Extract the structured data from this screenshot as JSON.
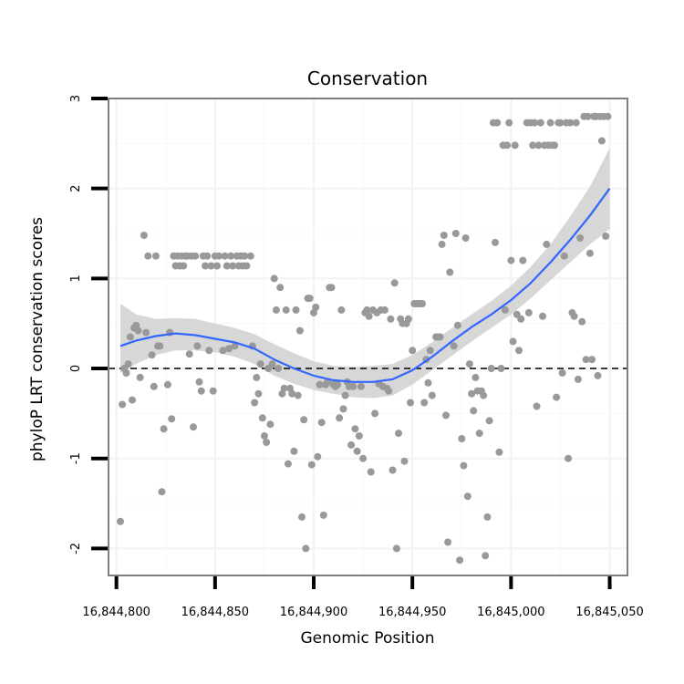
{
  "chart_data": {
    "type": "scatter",
    "title": "Conservation",
    "xlabel": "Genomic Position",
    "ylabel": "phyloP LRT conservation scores",
    "xlim": [
      16844796,
      16845059
    ],
    "ylim": [
      -2.3,
      3.0
    ],
    "x_ticks": [
      16844800,
      16844850,
      16844900,
      16844950,
      16845000,
      16845050
    ],
    "x_tick_labels": [
      "16,844,800",
      "16,844,850",
      "16,844,900",
      "16,844,950",
      "16,845,000",
      "16,845,050"
    ],
    "y_ticks": [
      -2,
      -1,
      0,
      1,
      2,
      3
    ],
    "y_tick_labels": [
      "-2",
      "-1",
      "0",
      "1",
      "2",
      "3"
    ],
    "grid": true,
    "reference_line": {
      "y": 0,
      "style": "dashed",
      "color": "#000000"
    },
    "point_color": "#999999",
    "smooth_color": "#3366FF",
    "band_color": "#d3d3d3",
    "points": [
      [
        16844802,
        -1.7
      ],
      [
        16844803,
        -0.4
      ],
      [
        16844804,
        0.0
      ],
      [
        16844805,
        -0.05
      ],
      [
        16844806,
        0.05
      ],
      [
        16844807,
        0.35
      ],
      [
        16844808,
        -0.35
      ],
      [
        16844809,
        0.45
      ],
      [
        16844810,
        0.48
      ],
      [
        16844811,
        0.42
      ],
      [
        16844812,
        -0.1
      ],
      [
        16844814,
        1.48
      ],
      [
        16844815,
        0.4
      ],
      [
        16844816,
        1.25
      ],
      [
        16844818,
        0.15
      ],
      [
        16844819,
        -0.2
      ],
      [
        16844820,
        1.25
      ],
      [
        16844821,
        0.25
      ],
      [
        16844822,
        0.25
      ],
      [
        16844823,
        -1.37
      ],
      [
        16844824,
        -0.67
      ],
      [
        16844826,
        -0.18
      ],
      [
        16844827,
        0.4
      ],
      [
        16844828,
        -0.56
      ],
      [
        16844829,
        1.25
      ],
      [
        16844830,
        1.14
      ],
      [
        16844831,
        1.25
      ],
      [
        16844832,
        1.14
      ],
      [
        16844833,
        1.25
      ],
      [
        16844834,
        1.14
      ],
      [
        16844835,
        1.25
      ],
      [
        16844836,
        1.25
      ],
      [
        16844837,
        0.16
      ],
      [
        16844838,
        1.25
      ],
      [
        16844839,
        -0.65
      ],
      [
        16844840,
        1.25
      ],
      [
        16844841,
        0.25
      ],
      [
        16844842,
        -0.15
      ],
      [
        16844843,
        -0.25
      ],
      [
        16844844,
        1.25
      ],
      [
        16844845,
        1.14
      ],
      [
        16844846,
        1.25
      ],
      [
        16844847,
        0.2
      ],
      [
        16844848,
        1.14
      ],
      [
        16844849,
        -0.25
      ],
      [
        16844850,
        1.25
      ],
      [
        16844851,
        1.14
      ],
      [
        16844852,
        1.25
      ],
      [
        16844854,
        0.2
      ],
      [
        16844855,
        1.25
      ],
      [
        16844856,
        1.14
      ],
      [
        16844857,
        0.22
      ],
      [
        16844858,
        1.25
      ],
      [
        16844859,
        1.14
      ],
      [
        16844860,
        0.25
      ],
      [
        16844861,
        1.25
      ],
      [
        16844862,
        1.14
      ],
      [
        16844863,
        1.25
      ],
      [
        16844864,
        1.14
      ],
      [
        16844865,
        1.25
      ],
      [
        16844866,
        1.14
      ],
      [
        16844868,
        1.25
      ],
      [
        16844869,
        0.25
      ],
      [
        16844870,
        -0.38
      ],
      [
        16844871,
        -0.1
      ],
      [
        16844872,
        -0.28
      ],
      [
        16844873,
        0.05
      ],
      [
        16844874,
        -0.55
      ],
      [
        16844875,
        -0.75
      ],
      [
        16844876,
        -0.82
      ],
      [
        16844877,
        0.0
      ],
      [
        16844878,
        -0.62
      ],
      [
        16844879,
        0.05
      ],
      [
        16844880,
        1.0
      ],
      [
        16844881,
        0.65
      ],
      [
        16844882,
        0.0
      ],
      [
        16844883,
        0.9
      ],
      [
        16844884,
        -0.28
      ],
      [
        16844885,
        -0.22
      ],
      [
        16844886,
        0.65
      ],
      [
        16844887,
        -1.06
      ],
      [
        16844888,
        -0.22
      ],
      [
        16844889,
        -0.28
      ],
      [
        16844890,
        -0.92
      ],
      [
        16844891,
        0.65
      ],
      [
        16844892,
        -0.3
      ],
      [
        16844893,
        0.42
      ],
      [
        16844894,
        -1.65
      ],
      [
        16844895,
        -0.57
      ],
      [
        16844896,
        -2.0
      ],
      [
        16844897,
        0.78
      ],
      [
        16844898,
        0.78
      ],
      [
        16844899,
        -1.07
      ],
      [
        16844900,
        0.62
      ],
      [
        16844901,
        0.68
      ],
      [
        16844902,
        -0.98
      ],
      [
        16844903,
        -0.18
      ],
      [
        16844904,
        -0.6
      ],
      [
        16844905,
        -1.63
      ],
      [
        16844906,
        -0.18
      ],
      [
        16844907,
        -0.15
      ],
      [
        16844908,
        0.9
      ],
      [
        16844909,
        0.9
      ],
      [
        16844910,
        -0.18
      ],
      [
        16844911,
        -0.2
      ],
      [
        16844912,
        -0.18
      ],
      [
        16844913,
        -0.55
      ],
      [
        16844914,
        0.65
      ],
      [
        16844915,
        -0.45
      ],
      [
        16844916,
        -0.3
      ],
      [
        16844917,
        -0.15
      ],
      [
        16844918,
        -0.2
      ],
      [
        16844919,
        -0.85
      ],
      [
        16844920,
        -0.2
      ],
      [
        16844921,
        -0.67
      ],
      [
        16844922,
        -0.92
      ],
      [
        16844923,
        -0.75
      ],
      [
        16844924,
        -0.2
      ],
      [
        16844925,
        -1.0
      ],
      [
        16844926,
        0.62
      ],
      [
        16844927,
        0.65
      ],
      [
        16844928,
        0.58
      ],
      [
        16844929,
        -1.15
      ],
      [
        16844930,
        0.65
      ],
      [
        16844931,
        -0.5
      ],
      [
        16844932,
        0.62
      ],
      [
        16844933,
        -0.17
      ],
      [
        16844934,
        0.65
      ],
      [
        16844935,
        -0.2
      ],
      [
        16844936,
        0.65
      ],
      [
        16844937,
        -0.22
      ],
      [
        16844938,
        -0.25
      ],
      [
        16844939,
        0.55
      ],
      [
        16844940,
        -1.13
      ],
      [
        16844941,
        0.95
      ],
      [
        16844942,
        -2.0
      ],
      [
        16844943,
        -0.72
      ],
      [
        16844944,
        0.55
      ],
      [
        16844945,
        0.5
      ],
      [
        16844946,
        -1.03
      ],
      [
        16844947,
        0.5
      ],
      [
        16844948,
        0.55
      ],
      [
        16844949,
        -0.38
      ],
      [
        16844950,
        0.2
      ],
      [
        16844951,
        0.72
      ],
      [
        16844952,
        0.72
      ],
      [
        16844953,
        0.72
      ],
      [
        16844954,
        0.72
      ],
      [
        16844955,
        0.72
      ],
      [
        16844956,
        -0.38
      ],
      [
        16844957,
        0.1
      ],
      [
        16844958,
        -0.16
      ],
      [
        16844959,
        0.2
      ],
      [
        16844960,
        -0.3
      ],
      [
        16844962,
        0.35
      ],
      [
        16844963,
        0.35
      ],
      [
        16844964,
        0.35
      ],
      [
        16844965,
        1.38
      ],
      [
        16844966,
        1.48
      ],
      [
        16844967,
        -0.52
      ],
      [
        16844968,
        -1.93
      ],
      [
        16844969,
        1.07
      ],
      [
        16844971,
        0.25
      ],
      [
        16844972,
        1.5
      ],
      [
        16844973,
        0.48
      ],
      [
        16844974,
        -2.13
      ],
      [
        16844975,
        -0.78
      ],
      [
        16844976,
        -1.08
      ],
      [
        16844977,
        1.45
      ],
      [
        16844978,
        -1.42
      ],
      [
        16844979,
        0.05
      ],
      [
        16844980,
        -0.28
      ],
      [
        16844981,
        -0.47
      ],
      [
        16844982,
        -0.1
      ],
      [
        16844983,
        -0.25
      ],
      [
        16844984,
        -0.72
      ],
      [
        16844985,
        -0.25
      ],
      [
        16844986,
        -0.3
      ],
      [
        16844987,
        -2.08
      ],
      [
        16844988,
        -1.65
      ],
      [
        16844989,
        -0.58
      ],
      [
        16844990,
        0.0
      ],
      [
        16844991,
        2.73
      ],
      [
        16844992,
        1.4
      ],
      [
        16844993,
        2.73
      ],
      [
        16844994,
        -0.93
      ],
      [
        16844995,
        0.0
      ],
      [
        16844996,
        2.48
      ],
      [
        16844997,
        0.65
      ],
      [
        16844998,
        2.48
      ],
      [
        16844999,
        2.73
      ],
      [
        16845000,
        1.2
      ],
      [
        16845001,
        0.3
      ],
      [
        16845002,
        2.48
      ],
      [
        16845003,
        0.6
      ],
      [
        16845004,
        0.2
      ],
      [
        16845005,
        0.55
      ],
      [
        16845006,
        1.2
      ],
      [
        16845008,
        2.73
      ],
      [
        16845009,
        0.62
      ],
      [
        16845010,
        2.73
      ],
      [
        16845011,
        2.48
      ],
      [
        16845012,
        2.73
      ],
      [
        16845013,
        -0.42
      ],
      [
        16845014,
        2.48
      ],
      [
        16845015,
        2.73
      ],
      [
        16845016,
        0.58
      ],
      [
        16845017,
        2.48
      ],
      [
        16845018,
        1.38
      ],
      [
        16845019,
        2.48
      ],
      [
        16845020,
        2.73
      ],
      [
        16845021,
        2.48
      ],
      [
        16845022,
        2.48
      ],
      [
        16845023,
        -0.32
      ],
      [
        16845024,
        2.73
      ],
      [
        16845025,
        2.73
      ],
      [
        16845026,
        -0.05
      ],
      [
        16845027,
        1.25
      ],
      [
        16845028,
        2.73
      ],
      [
        16845029,
        -1.0
      ],
      [
        16845030,
        2.73
      ],
      [
        16845031,
        0.62
      ],
      [
        16845032,
        0.58
      ],
      [
        16845033,
        2.73
      ],
      [
        16845034,
        -0.12
      ],
      [
        16845035,
        1.45
      ],
      [
        16845036,
        0.52
      ],
      [
        16845037,
        2.8
      ],
      [
        16845038,
        0.1
      ],
      [
        16845039,
        2.8
      ],
      [
        16845040,
        1.28
      ],
      [
        16845041,
        0.1
      ],
      [
        16845042,
        2.8
      ],
      [
        16845043,
        2.8
      ],
      [
        16845044,
        -0.08
      ],
      [
        16845045,
        2.8
      ],
      [
        16845046,
        2.53
      ],
      [
        16845047,
        2.8
      ],
      [
        16845048,
        1.47
      ],
      [
        16845049,
        2.8
      ]
    ],
    "smooth_fit": {
      "x": [
        16844802,
        16844810,
        16844820,
        16844830,
        16844840,
        16844850,
        16844860,
        16844870,
        16844880,
        16844890,
        16844900,
        16844910,
        16844920,
        16844930,
        16844940,
        16844950,
        16844960,
        16844970,
        16844980,
        16844990,
        16845000,
        16845010,
        16845020,
        16845030,
        16845040,
        16845050
      ],
      "y": [
        0.25,
        0.31,
        0.36,
        0.39,
        0.37,
        0.33,
        0.29,
        0.22,
        0.1,
        0.0,
        -0.08,
        -0.13,
        -0.15,
        -0.15,
        -0.12,
        -0.02,
        0.13,
        0.3,
        0.46,
        0.6,
        0.76,
        0.95,
        1.18,
        1.43,
        1.7,
        2.0
      ],
      "lower": [
        -0.05,
        0.05,
        0.15,
        0.2,
        0.2,
        0.18,
        0.13,
        0.05,
        -0.08,
        -0.17,
        -0.24,
        -0.28,
        -0.32,
        -0.33,
        -0.3,
        -0.18,
        -0.02,
        0.14,
        0.3,
        0.45,
        0.6,
        0.78,
        0.98,
        1.18,
        1.38,
        1.55
      ],
      "upper": [
        0.72,
        0.6,
        0.55,
        0.56,
        0.55,
        0.5,
        0.45,
        0.38,
        0.27,
        0.17,
        0.08,
        0.03,
        0.02,
        0.03,
        0.05,
        0.15,
        0.29,
        0.45,
        0.6,
        0.75,
        0.92,
        1.13,
        1.38,
        1.69,
        2.02,
        2.45
      ]
    }
  }
}
